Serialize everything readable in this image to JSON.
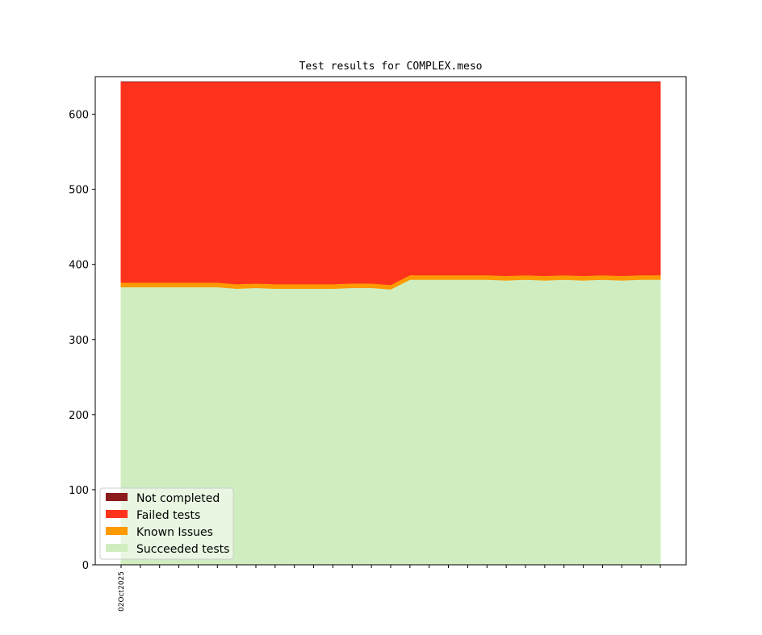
{
  "chart_data": {
    "type": "area",
    "stacked": true,
    "title": "Test results for COMPLEX.meso",
    "xlabel": "",
    "ylabel": "",
    "ylim": [
      0,
      650
    ],
    "yticks": [
      0,
      100,
      200,
      300,
      400,
      500,
      600
    ],
    "x_tick_count": 29,
    "x_tick_labels": [
      {
        "index": 0,
        "label": "02Oct2025"
      }
    ],
    "grid": false,
    "legend_position": "lower-left",
    "series": [
      {
        "name": "Succeeded tests",
        "color": "#cfedbf",
        "values": [
          370,
          370,
          370,
          370,
          370,
          370,
          368,
          369,
          368,
          368,
          368,
          368,
          369,
          369,
          367,
          380,
          380,
          380,
          380,
          380,
          379,
          380,
          379,
          380,
          379,
          380,
          379,
          380,
          380
        ]
      },
      {
        "name": "Known Issues",
        "color": "#ff9900",
        "values": [
          6,
          6,
          6,
          6,
          6,
          6,
          6,
          6,
          6,
          6,
          6,
          6,
          6,
          6,
          6,
          6,
          6,
          6,
          6,
          6,
          6,
          6,
          6,
          6,
          6,
          6,
          6,
          6,
          6
        ]
      },
      {
        "name": "Failed tests",
        "color": "#ff331c",
        "values": [
          267,
          267,
          267,
          267,
          267,
          267,
          269,
          268,
          269,
          269,
          269,
          269,
          268,
          268,
          270,
          257,
          257,
          257,
          257,
          257,
          258,
          257,
          258,
          257,
          258,
          257,
          258,
          257,
          257
        ]
      },
      {
        "name": "Not completed",
        "color": "#8b1a1a",
        "values": [
          0,
          0,
          0,
          0,
          0,
          0,
          0,
          0,
          0,
          0,
          0,
          0,
          0,
          0,
          0,
          0,
          0,
          0,
          0,
          0,
          0,
          0,
          0,
          0,
          0,
          0,
          0,
          0,
          0
        ]
      }
    ],
    "legend_order": [
      "Not completed",
      "Failed tests",
      "Known Issues",
      "Succeeded tests"
    ]
  }
}
